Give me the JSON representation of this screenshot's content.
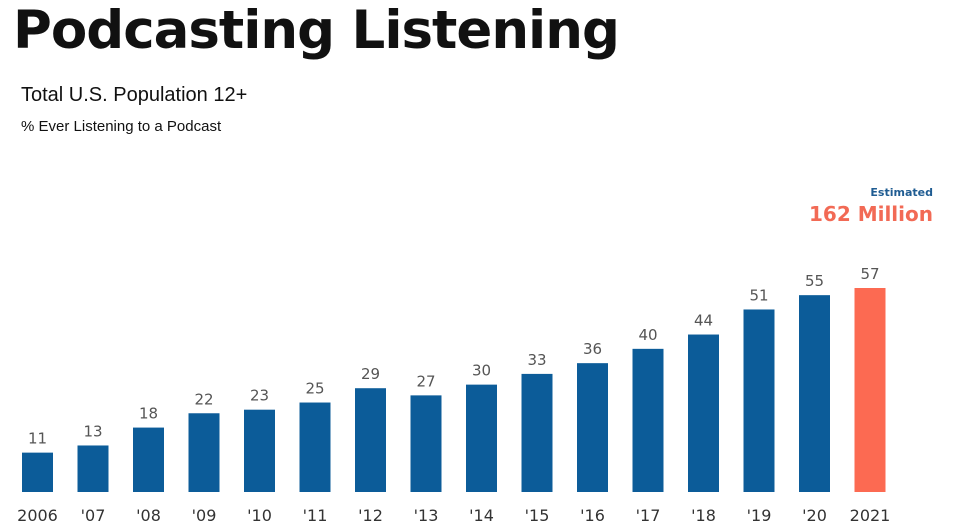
{
  "header": {
    "title": "Podcasting Listening",
    "subtitle": "Total U.S. Population 12+",
    "subsubtitle": "% Ever Listening to a Podcast"
  },
  "annotation": {
    "label": "Estimated",
    "value": "162 Million"
  },
  "colors": {
    "bar": "#0c5c99",
    "highlight": "#fc6a52",
    "annotation_label": "#1f5c92",
    "annotation_value": "#f26a55"
  },
  "chart_data": {
    "type": "bar",
    "title": "Podcasting Listening",
    "subtitle": "Total U.S. Population 12+",
    "ylabel": "% Ever Listening to a Podcast",
    "xlabel": "",
    "categories": [
      "2006",
      "'07",
      "'08",
      "'09",
      "'10",
      "'11",
      "'12",
      "'13",
      "'14",
      "'15",
      "'16",
      "'17",
      "'18",
      "'19",
      "'20",
      "2021"
    ],
    "values": [
      11,
      13,
      18,
      22,
      23,
      25,
      29,
      27,
      30,
      33,
      36,
      40,
      44,
      51,
      55,
      57
    ],
    "highlight_index": 15,
    "ylim": [
      0,
      57
    ],
    "grid": false,
    "legend": "none"
  }
}
